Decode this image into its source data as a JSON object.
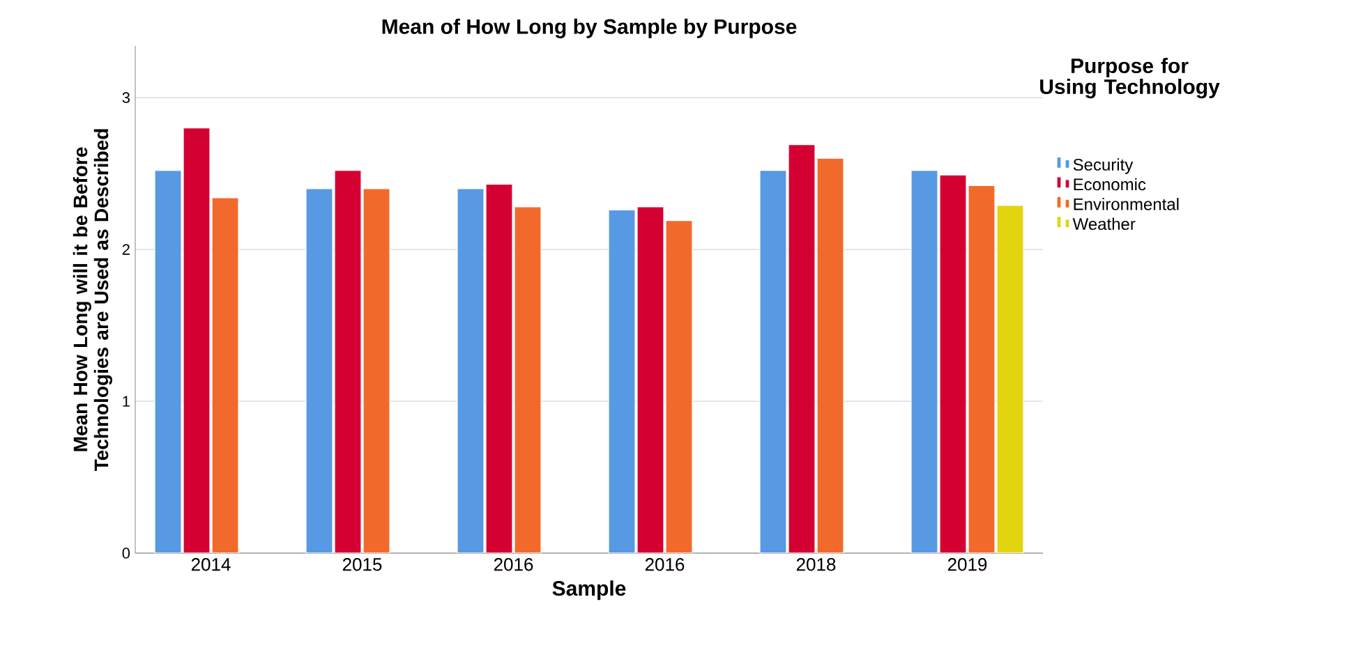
{
  "chart_data": {
    "type": "bar",
    "title": "Mean of How Long by Sample by Purpose",
    "xlabel": "Sample",
    "ylabel": "Mean How Long will it be Before Technologies are Used as Described",
    "legend_title": "Purpose for Using Technology",
    "categories": [
      "2014",
      "2015",
      "2016",
      "2016",
      "2018",
      "2019"
    ],
    "series": [
      {
        "name": "Security",
        "color": "#5799e3",
        "values": [
          2.52,
          2.4,
          2.4,
          2.26,
          2.52,
          2.52
        ]
      },
      {
        "name": "Economic",
        "color": "#d50032",
        "values": [
          2.8,
          2.52,
          2.43,
          2.28,
          2.69,
          2.49
        ]
      },
      {
        "name": "Environmental",
        "color": "#f26a2b",
        "values": [
          2.34,
          2.4,
          2.28,
          2.19,
          2.6,
          2.42
        ]
      },
      {
        "name": "Weather",
        "color": "#e2d50f",
        "values": [
          null,
          null,
          null,
          null,
          null,
          2.29
        ]
      }
    ],
    "ylim": [
      0,
      3.34
    ],
    "yticks": [
      0,
      1,
      2,
      3
    ],
    "grid": "y",
    "legend": "right"
  }
}
